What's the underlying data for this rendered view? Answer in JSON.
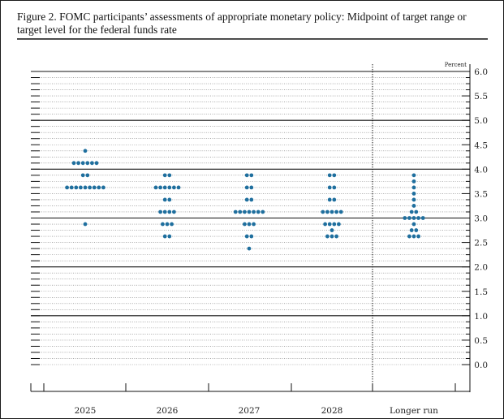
{
  "figure": {
    "title": "Figure 2. FOMC participants’ assessments of appropriate monetary policy: Midpoint of target range or target level for the federal funds rate"
  },
  "chart_data": {
    "type": "scatter",
    "title": "Figure 2. FOMC participants’ assessments of appropriate monetary policy: Midpoint of target range or target level for the federal funds rate",
    "unit_label": "Percent",
    "categories": [
      "2025",
      "2026",
      "2027",
      "2028",
      "Longer run"
    ],
    "ylim": [
      0,
      6
    ],
    "yticks": [
      "6.0",
      "5.5",
      "5.0",
      "4.5",
      "4.0",
      "3.5",
      "3.0",
      "2.5",
      "2.0",
      "1.5",
      "1.0",
      "0.5",
      "0.0"
    ],
    "major_gridlines": [
      6.0,
      5.0,
      4.0,
      3.0,
      2.0,
      1.0
    ],
    "dot_color": "#1f6f9e",
    "series": [
      {
        "values": [
          {
            "y": 4.375,
            "count": 1
          },
          {
            "y": 4.125,
            "count": 6
          },
          {
            "y": 3.875,
            "count": 2
          },
          {
            "y": 3.625,
            "count": 9
          },
          {
            "y": 2.875,
            "count": 1
          }
        ]
      },
      {
        "values": [
          {
            "y": 3.875,
            "count": 2
          },
          {
            "y": 3.625,
            "count": 6
          },
          {
            "y": 3.375,
            "count": 2
          },
          {
            "y": 3.125,
            "count": 4
          },
          {
            "y": 2.875,
            "count": 3
          },
          {
            "y": 2.625,
            "count": 2
          }
        ]
      },
      {
        "values": [
          {
            "y": 3.875,
            "count": 2
          },
          {
            "y": 3.625,
            "count": 2
          },
          {
            "y": 3.375,
            "count": 2
          },
          {
            "y": 3.125,
            "count": 7
          },
          {
            "y": 2.875,
            "count": 3
          },
          {
            "y": 2.625,
            "count": 2
          },
          {
            "y": 2.375,
            "count": 1
          }
        ]
      },
      {
        "values": [
          {
            "y": 3.875,
            "count": 2
          },
          {
            "y": 3.625,
            "count": 2
          },
          {
            "y": 3.375,
            "count": 2
          },
          {
            "y": 3.125,
            "count": 5
          },
          {
            "y": 2.875,
            "count": 4
          },
          {
            "y": 2.75,
            "count": 1
          },
          {
            "y": 2.625,
            "count": 3
          }
        ]
      },
      {
        "values": [
          {
            "y": 3.875,
            "count": 1
          },
          {
            "y": 3.75,
            "count": 1
          },
          {
            "y": 3.625,
            "count": 1
          },
          {
            "y": 3.5,
            "count": 1
          },
          {
            "y": 3.375,
            "count": 1
          },
          {
            "y": 3.25,
            "count": 1
          },
          {
            "y": 3.125,
            "count": 2
          },
          {
            "y": 3.0,
            "count": 5
          },
          {
            "y": 2.875,
            "count": 1
          },
          {
            "y": 2.75,
            "count": 2
          },
          {
            "y": 2.625,
            "count": 3
          }
        ]
      }
    ]
  }
}
